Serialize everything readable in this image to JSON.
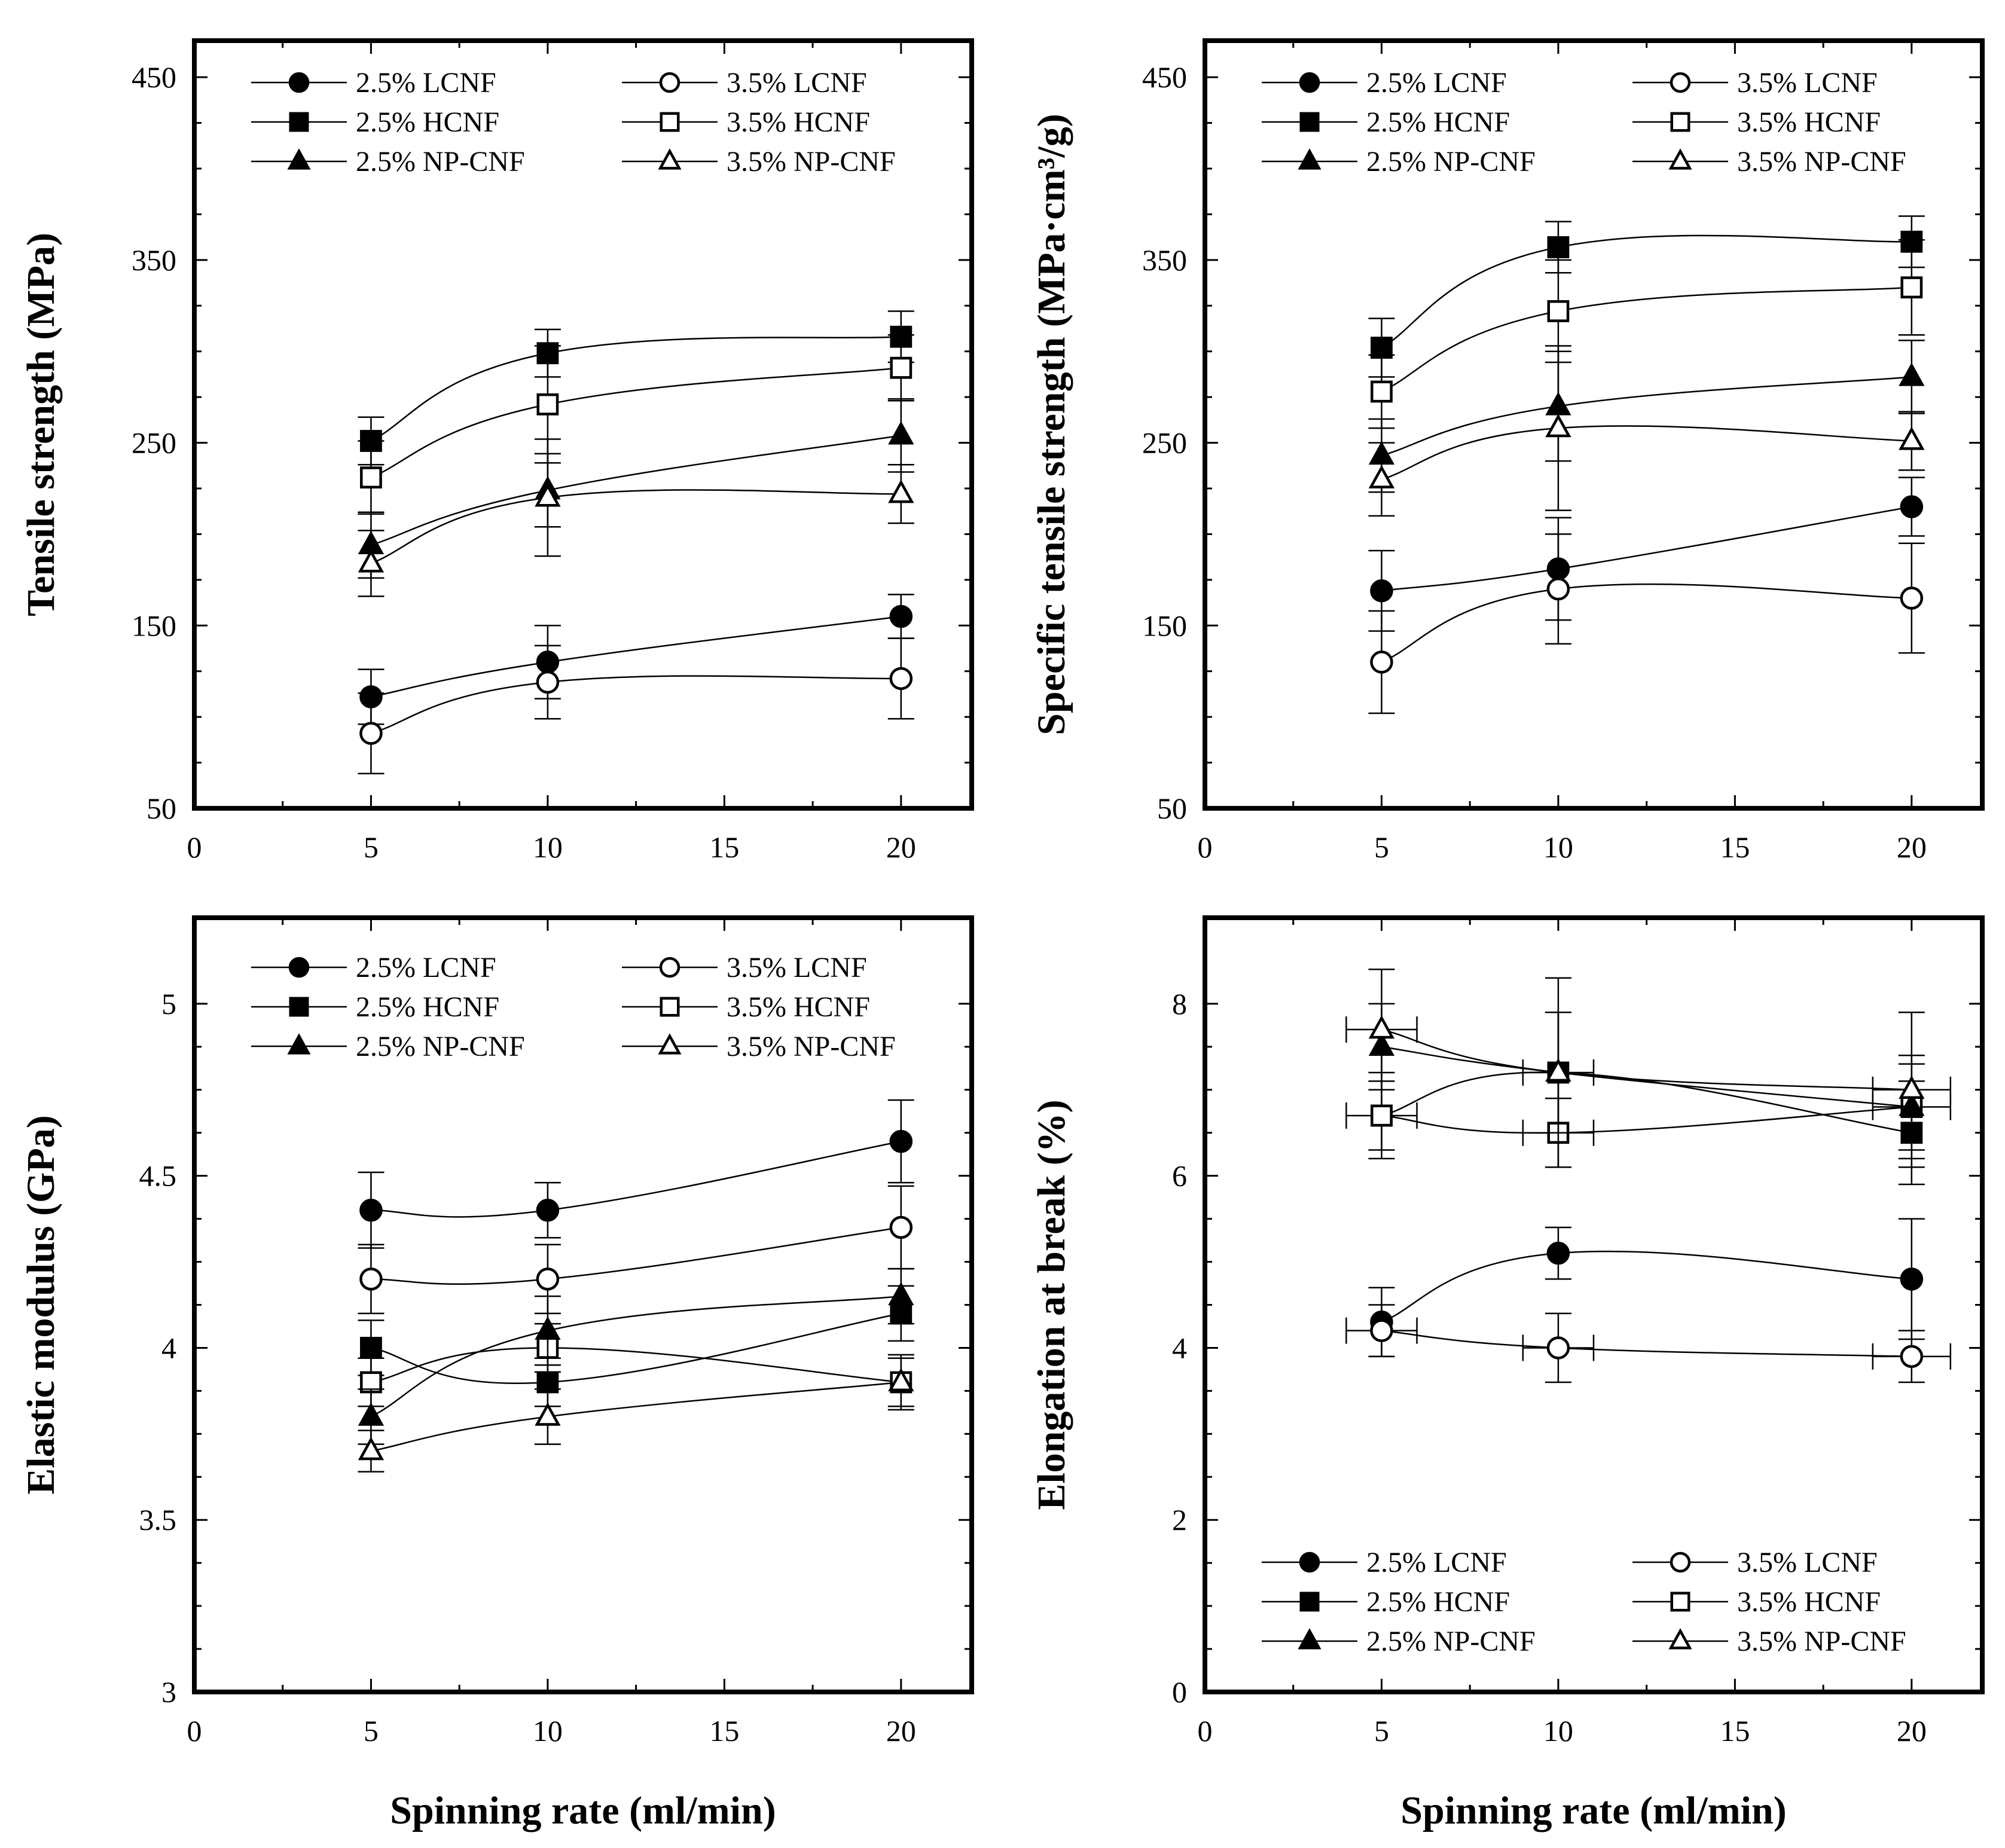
{
  "figure": {
    "shared_xlabel": "Spinning rate (ml/min)"
  },
  "chart_data": [
    {
      "id": "tensile",
      "type": "line",
      "title": "",
      "xlabel": "",
      "ylabel": "Tensile strength (MPa)",
      "xlim": [
        0,
        22
      ],
      "ylim": [
        50,
        470
      ],
      "xticks": [
        0,
        5,
        10,
        15,
        20
      ],
      "yticks": [
        50,
        150,
        250,
        350,
        450
      ],
      "legend": "top",
      "series": [
        {
          "name": "2.5% LCNF",
          "marker": "circle",
          "filled": true,
          "x": [
            5,
            10,
            20
          ],
          "y": [
            111,
            130,
            155
          ],
          "yerr": [
            15,
            20,
            12
          ]
        },
        {
          "name": "3.5% LCNF",
          "marker": "circle",
          "filled": false,
          "x": [
            5,
            10,
            20
          ],
          "y": [
            91,
            119,
            121
          ],
          "yerr": [
            22,
            20,
            22
          ]
        },
        {
          "name": "2.5% HCNF",
          "marker": "square",
          "filled": true,
          "x": [
            5,
            10,
            20
          ],
          "y": [
            251,
            299,
            308
          ],
          "yerr": [
            13,
            13,
            14
          ]
        },
        {
          "name": "3.5% HCNF",
          "marker": "square",
          "filled": false,
          "x": [
            5,
            10,
            20
          ],
          "y": [
            231,
            271,
            291
          ],
          "yerr": [
            20,
            32,
            18
          ]
        },
        {
          "name": "2.5% NP-CNF",
          "marker": "triangle",
          "filled": true,
          "x": [
            5,
            10,
            20
          ],
          "y": [
            194,
            224,
            254
          ],
          "yerr": [
            18,
            20,
            20
          ]
        },
        {
          "name": "3.5% NP-CNF",
          "marker": "triangle",
          "filled": false,
          "x": [
            5,
            10,
            20
          ],
          "y": [
            184,
            220,
            222
          ],
          "yerr": [
            18,
            32,
            16
          ]
        }
      ]
    },
    {
      "id": "specific",
      "type": "line",
      "title": "",
      "xlabel": "",
      "ylabel": "Specific tensile strength (MPa·cm³/g)",
      "xlim": [
        0,
        22
      ],
      "ylim": [
        50,
        470
      ],
      "xticks": [
        0,
        5,
        10,
        15,
        20
      ],
      "yticks": [
        50,
        150,
        250,
        350,
        450
      ],
      "legend": "top",
      "series": [
        {
          "name": "2.5% LCNF",
          "marker": "circle",
          "filled": true,
          "x": [
            5,
            10,
            20
          ],
          "y": [
            169,
            181,
            215
          ],
          "yerr": [
            22,
            28,
            16
          ]
        },
        {
          "name": "3.5% LCNF",
          "marker": "circle",
          "filled": false,
          "x": [
            5,
            10,
            20
          ],
          "y": [
            130,
            170,
            165
          ],
          "yerr": [
            28,
            30,
            30
          ]
        },
        {
          "name": "2.5% HCNF",
          "marker": "square",
          "filled": true,
          "x": [
            5,
            10,
            20
          ],
          "y": [
            302,
            357,
            360
          ],
          "yerr": [
            16,
            14,
            14
          ]
        },
        {
          "name": "3.5% HCNF",
          "marker": "square",
          "filled": false,
          "x": [
            5,
            10,
            20
          ],
          "y": [
            278,
            322,
            335
          ],
          "yerr": [
            20,
            28,
            26
          ]
        },
        {
          "name": "2.5% NP-CNF",
          "marker": "triangle",
          "filled": true,
          "x": [
            5,
            10,
            20
          ],
          "y": [
            243,
            270,
            286
          ],
          "yerr": [
            20,
            30,
            20
          ]
        },
        {
          "name": "3.5% NP-CNF",
          "marker": "triangle",
          "filled": false,
          "x": [
            5,
            10,
            20
          ],
          "y": [
            230,
            258,
            251
          ],
          "yerr": [
            20,
            45,
            16
          ]
        }
      ]
    },
    {
      "id": "modulus",
      "type": "line",
      "title": "",
      "xlabel": "Spinning rate (ml/min)",
      "ylabel": "Elastic modulus (GPa)",
      "xlim": [
        0,
        22
      ],
      "ylim": [
        3,
        5.25
      ],
      "xticks": [
        0,
        5,
        10,
        15,
        20
      ],
      "yticks": [
        3,
        3.5,
        4,
        4.5,
        5
      ],
      "legend": "top",
      "series": [
        {
          "name": "2.5% LCNF",
          "marker": "circle",
          "filled": true,
          "x": [
            5,
            10,
            20
          ],
          "y": [
            4.4,
            4.4,
            4.6
          ],
          "yerr": [
            0.11,
            0.08,
            0.12
          ]
        },
        {
          "name": "3.5% LCNF",
          "marker": "circle",
          "filled": false,
          "x": [
            5,
            10,
            20
          ],
          "y": [
            4.2,
            4.2,
            4.35
          ],
          "yerr": [
            0.1,
            0.1,
            0.12
          ]
        },
        {
          "name": "2.5% HCNF",
          "marker": "square",
          "filled": true,
          "x": [
            5,
            10,
            20
          ],
          "y": [
            4.0,
            3.9,
            4.1
          ],
          "yerr": [
            0.08,
            0.07,
            0.08
          ]
        },
        {
          "name": "3.5% HCNF",
          "marker": "square",
          "filled": false,
          "x": [
            5,
            10,
            20
          ],
          "y": [
            3.9,
            4.0,
            3.9
          ],
          "yerr": [
            0.07,
            0.07,
            0.08
          ]
        },
        {
          "name": "2.5% NP-CNF",
          "marker": "triangle",
          "filled": true,
          "x": [
            5,
            10,
            20
          ],
          "y": [
            3.8,
            4.05,
            4.15
          ],
          "yerr": [
            0.08,
            0.1,
            0.08
          ]
        },
        {
          "name": "3.5% NP-CNF",
          "marker": "triangle",
          "filled": false,
          "x": [
            5,
            10,
            20
          ],
          "y": [
            3.7,
            3.8,
            3.9
          ],
          "yerr": [
            0.06,
            0.08,
            0.07
          ]
        }
      ]
    },
    {
      "id": "elongation",
      "type": "line",
      "title": "",
      "xlabel": "Spinning rate (ml/min)",
      "ylabel": "Elongation at break (%)",
      "xlim": [
        0,
        22
      ],
      "ylim": [
        0,
        9
      ],
      "xticks": [
        0,
        5,
        10,
        15,
        20
      ],
      "yticks": [
        0,
        2,
        4,
        6,
        8
      ],
      "legend": "bottom",
      "series": [
        {
          "name": "2.5% LCNF",
          "marker": "circle",
          "filled": true,
          "x": [
            5,
            10,
            20
          ],
          "y": [
            4.3,
            5.1,
            4.8
          ],
          "yerr": [
            0.4,
            0.3,
            0.7
          ],
          "xerr": [
            0,
            0,
            0
          ]
        },
        {
          "name": "3.5% LCNF",
          "marker": "circle",
          "filled": false,
          "x": [
            5,
            10,
            20
          ],
          "y": [
            4.2,
            4.0,
            3.9
          ],
          "yerr": [
            0.3,
            0.4,
            0.3
          ],
          "xerr": [
            1,
            1,
            1.1
          ]
        },
        {
          "name": "2.5% HCNF",
          "marker": "square",
          "filled": true,
          "x": [
            5,
            10,
            20
          ],
          "y": [
            6.7,
            7.2,
            6.5
          ],
          "yerr": [
            0.5,
            0.7,
            0.6
          ],
          "xerr": [
            0,
            0,
            0
          ]
        },
        {
          "name": "3.5% HCNF",
          "marker": "square",
          "filled": false,
          "x": [
            5,
            10,
            20
          ],
          "y": [
            6.7,
            6.5,
            6.8
          ],
          "yerr": [
            0.4,
            0.4,
            0.5
          ],
          "xerr": [
            1,
            1,
            1.1
          ]
        },
        {
          "name": "2.5% NP-CNF",
          "marker": "triangle",
          "filled": true,
          "x": [
            5,
            10,
            20
          ],
          "y": [
            7.5,
            7.2,
            6.8
          ],
          "yerr": [
            0.5,
            0.7,
            0.6
          ],
          "xerr": [
            0,
            0,
            0
          ]
        },
        {
          "name": "3.5% NP-CNF",
          "marker": "triangle",
          "filled": false,
          "x": [
            5,
            10,
            20
          ],
          "y": [
            7.7,
            7.2,
            7.0
          ],
          "yerr": [
            0.7,
            1.1,
            0.9
          ],
          "xerr": [
            1,
            1,
            1.1
          ]
        }
      ]
    }
  ]
}
